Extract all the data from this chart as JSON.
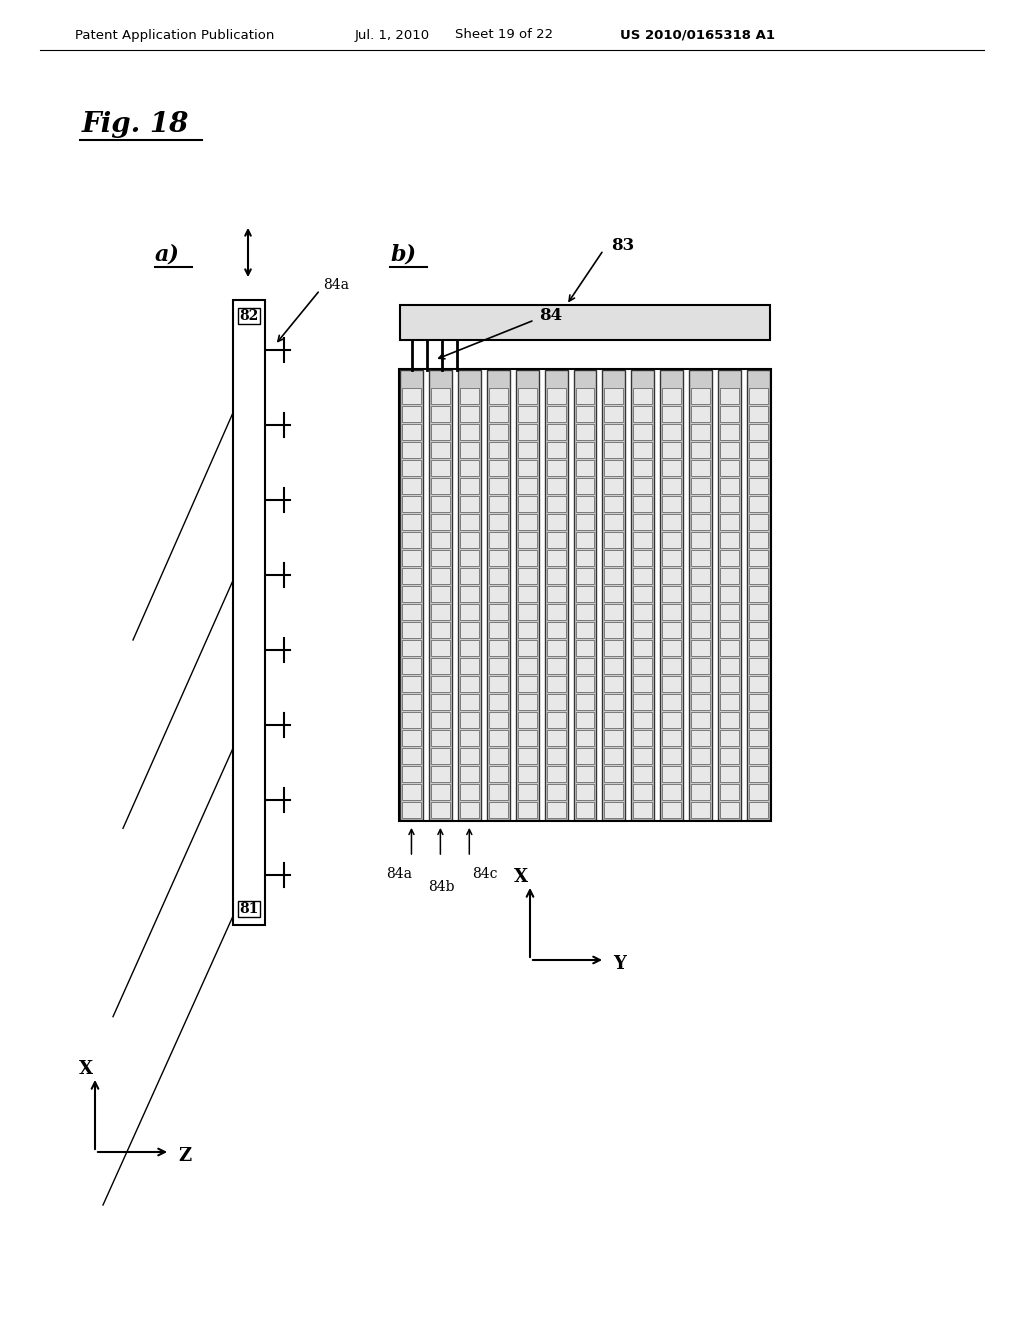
{
  "bg_color": "#ffffff",
  "header_text": "Patent Application Publication",
  "header_date": "Jul. 1, 2010",
  "header_sheet": "Sheet 19 of 22",
  "header_patent": "US 2010/0165318 A1",
  "fig_label": "Fig. 18",
  "label_a": "a)",
  "label_b": "b)",
  "label_82": "82",
  "label_81": "81",
  "label_83": "83",
  "label_84": "84",
  "label_84a_top": "84a",
  "label_84a_bot": "84a",
  "label_84b": "84b",
  "label_84c": "84c",
  "label_X_left": "X",
  "label_Z": "Z",
  "label_X_right": "X",
  "label_Y": "Y"
}
